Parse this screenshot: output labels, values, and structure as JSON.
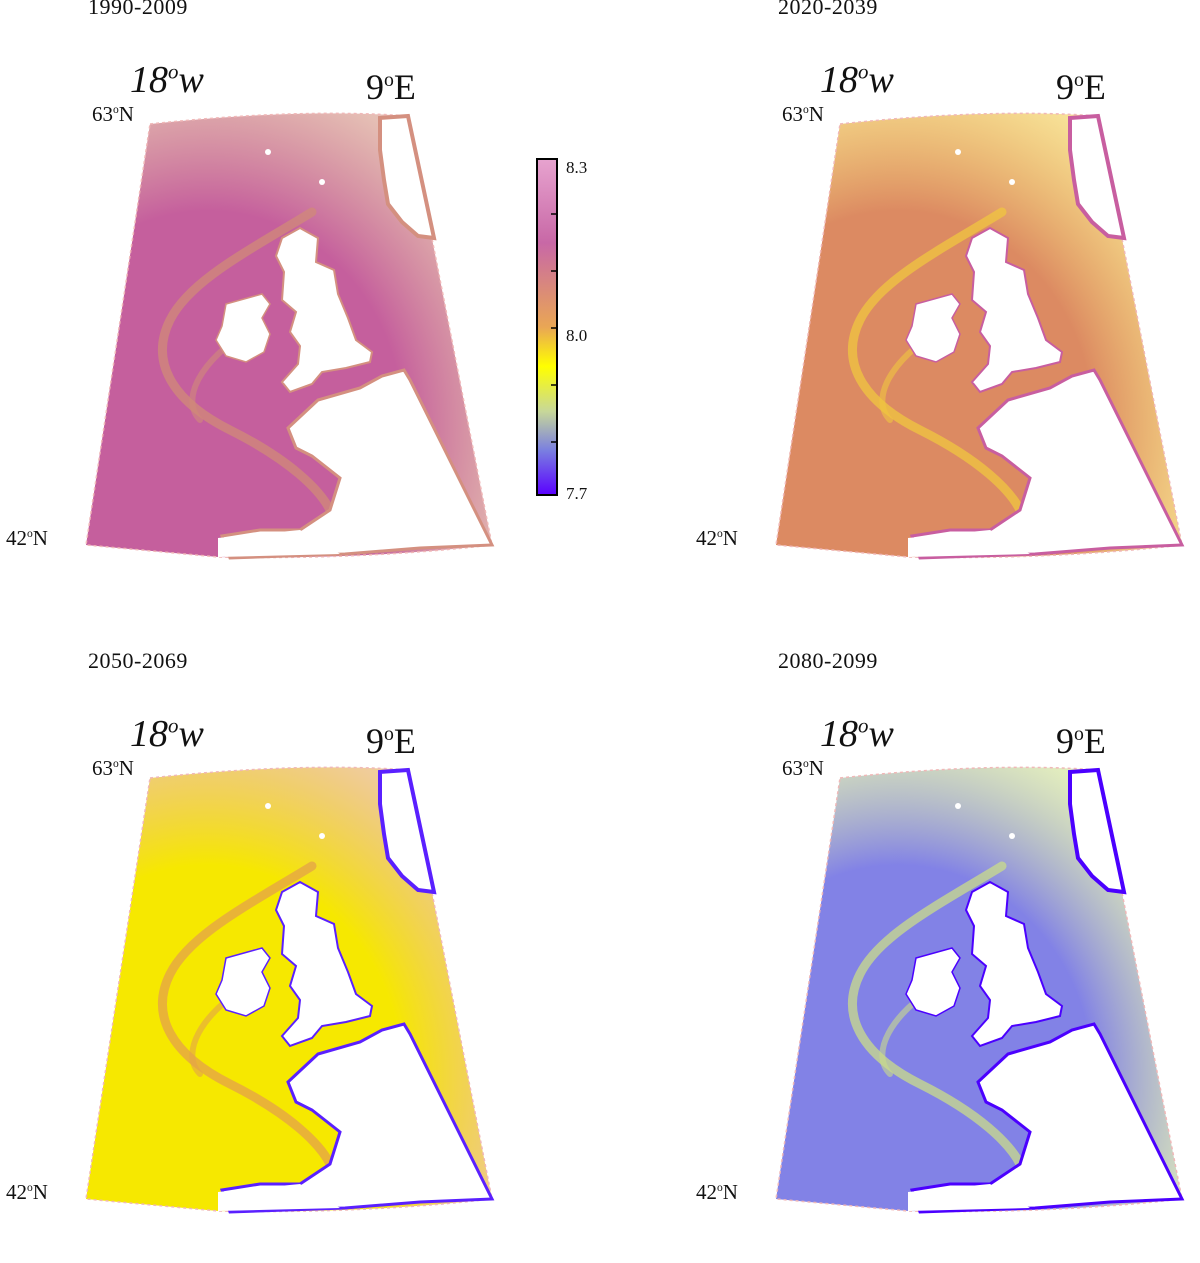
{
  "colorbar": {
    "ticks": [
      "8.3",
      "8.0",
      "7.7"
    ],
    "range": [
      7.7,
      8.3
    ],
    "gradient": [
      {
        "value": 8.3,
        "color": "#e7a3cf"
      },
      {
        "value": 8.15,
        "color": "#c868a6"
      },
      {
        "value": 8.0,
        "color": "#e9a655"
      },
      {
        "value": 7.93,
        "color": "#ffff00"
      },
      {
        "value": 7.85,
        "color": "#c8d898"
      },
      {
        "value": 7.78,
        "color": "#7a7fe0"
      },
      {
        "value": 7.7,
        "color": "#5a00ff"
      }
    ]
  },
  "panels": [
    {
      "period": "1990-2009",
      "lon_west": "18",
      "lon_west_unit": "w",
      "lon_east": "9",
      "lon_east_unit": "E",
      "lat_north": "63",
      "lat_south": "42",
      "lat_unit": "N",
      "base_color": "#c55f9d",
      "accent_color": "#d08a78",
      "coast_color": "#d49080"
    },
    {
      "period": "2020-2039",
      "lon_west": "18",
      "lon_west_unit": "w",
      "lon_east": "9",
      "lon_east_unit": "E",
      "lat_north": "63",
      "lat_south": "42",
      "lat_unit": "N",
      "base_color": "#dc8a62",
      "accent_color": "#f0c640",
      "coast_color": "#c85ea0"
    },
    {
      "period": "2050-2069",
      "lon_west": "18",
      "lon_west_unit": "w",
      "lon_east": "9",
      "lon_east_unit": "E",
      "lat_north": "63",
      "lat_south": "42",
      "lat_unit": "N",
      "base_color": "#f6e800",
      "accent_color": "#e4a24a",
      "coast_color": "#5a20ff"
    },
    {
      "period": "2080-2099",
      "lon_west": "18",
      "lon_west_unit": "w",
      "lon_east": "9",
      "lon_east_unit": "E",
      "lat_north": "63",
      "lat_south": "42",
      "lat_unit": "N",
      "base_color": "#8282e6",
      "accent_color": "#c9dc8a",
      "coast_color": "#4b00ff"
    }
  ]
}
